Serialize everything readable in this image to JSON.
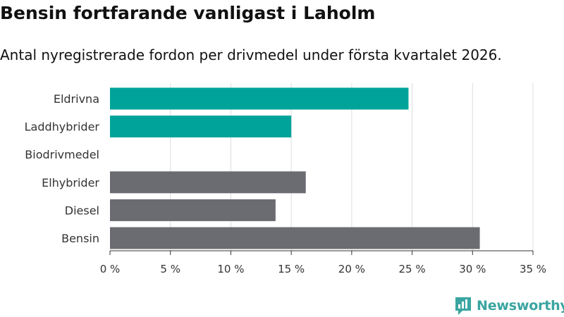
{
  "header": {
    "title": "Bensin fortfarande vanligast i Laholm",
    "subtitle": "Antal nyregistrerade fordon per drivmedel under första kvartalet 2026."
  },
  "brand": {
    "name": "Newsworthy",
    "icon": "newsworthy-logo-icon",
    "color": "#3aa5a0"
  },
  "colors": {
    "highlight": "#00a39a",
    "default": "#6b6b72",
    "grid": "#dddddd",
    "axis": "#333333"
  },
  "chart_data": {
    "type": "bar",
    "orientation": "horizontal",
    "title": "Bensin fortfarande vanligast i Laholm",
    "subtitle": "Antal nyregistrerade fordon per drivmedel under första kvartalet 2026.",
    "categories": [
      "Eldrivna",
      "Laddhybrider",
      "Biodrivmedel",
      "Elhybrider",
      "Diesel",
      "Bensin"
    ],
    "values": [
      24.7,
      15.0,
      0,
      16.2,
      13.7,
      30.6
    ],
    "highlighted": [
      true,
      true,
      false,
      false,
      false,
      false
    ],
    "xlabel": "",
    "ylabel": "",
    "xlim": [
      0,
      35
    ],
    "ticks": [
      0,
      5,
      10,
      15,
      20,
      25,
      30,
      35
    ],
    "tick_suffix": " %",
    "grid": true
  }
}
